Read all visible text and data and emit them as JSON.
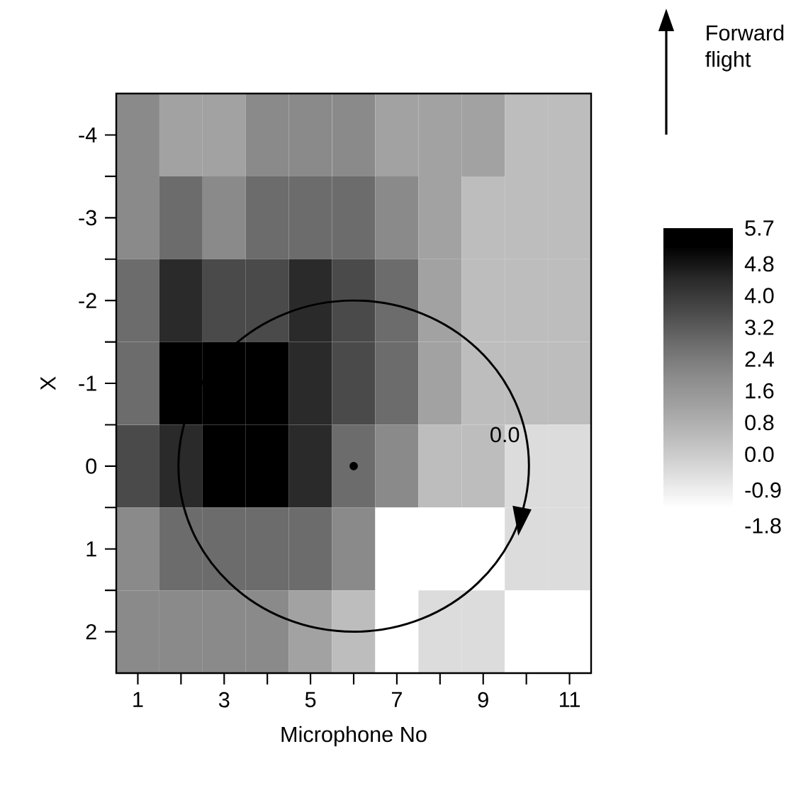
{
  "chart_data": {
    "type": "heatmap",
    "xlabel": "Microphone No",
    "ylabel": "X",
    "categories": [
      "1",
      null,
      "3",
      null,
      "5",
      null,
      "7",
      null,
      "9",
      null,
      "11"
    ],
    "y_categories": [
      "-4",
      "-3",
      "-2",
      "-1",
      "0",
      "1",
      "2"
    ],
    "cells": [
      [
        2.0,
        1.2,
        1.2,
        2.0,
        2.0,
        2.0,
        1.2,
        1.2,
        1.2,
        0.4,
        0.4
      ],
      [
        2.0,
        2.8,
        2.0,
        2.8,
        2.8,
        2.8,
        2.0,
        1.2,
        0.4,
        0.4,
        0.4
      ],
      [
        2.8,
        4.4,
        3.6,
        3.6,
        4.4,
        3.6,
        2.8,
        1.2,
        0.4,
        0.4,
        0.4
      ],
      [
        2.8,
        5.25,
        5.25,
        5.25,
        4.4,
        3.6,
        2.8,
        1.2,
        0.4,
        0.4,
        0.4
      ],
      [
        3.6,
        4.4,
        5.25,
        5.25,
        4.4,
        2.8,
        2.0,
        0.4,
        0.4,
        -0.45,
        -0.45
      ],
      [
        2.0,
        2.8,
        2.8,
        2.8,
        2.8,
        2.0,
        -1.35,
        -1.35,
        -1.35,
        -0.45,
        -0.45
      ],
      [
        2.0,
        2.0,
        2.0,
        2.0,
        1.2,
        0.4,
        -1.35,
        -0.45,
        -0.45,
        -1.35,
        -1.35
      ]
    ],
    "clim": [
      -1.8,
      5.7
    ],
    "cticks": [
      5.7,
      4.8,
      {
        "value": 4,
        "label": "4.0"
      },
      3.2,
      2.4,
      1.6,
      0.8,
      {
        "value": 0,
        "label": "0.0"
      },
      -0.9,
      -1.8
    ],
    "annotations": [
      "0.0",
      "Forward flight"
    ]
  }
}
